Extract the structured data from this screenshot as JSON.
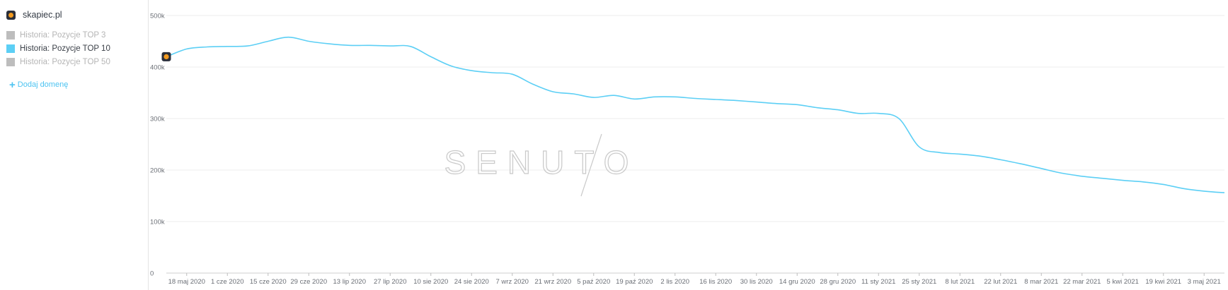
{
  "sidebar": {
    "domain": {
      "label": "skapiec.pl",
      "icon": "skapiec-logo-icon"
    },
    "legend": [
      {
        "label": "Historia: Pozycje TOP 3",
        "color": "#bdbdbd",
        "text_color": "#b5b5b5",
        "active": false
      },
      {
        "label": "Historia: Pozycje TOP 10",
        "color": "#5ccff5",
        "text_color": "#3a3f47",
        "active": true
      },
      {
        "label": "Historia: Pozycje TOP 50",
        "color": "#bdbdbd",
        "text_color": "#b5b5b5",
        "active": false
      }
    ],
    "add_domain": {
      "label": "Dodaj domenę",
      "icon": "plus-icon"
    }
  },
  "watermark": "SENUTO",
  "chart_data": {
    "type": "line",
    "title": "",
    "xlabel": "",
    "ylabel": "",
    "ylim": [
      0,
      500000
    ],
    "y_ticks": [
      {
        "label": "0",
        "value": 0
      },
      {
        "label": "100k",
        "value": 100000
      },
      {
        "label": "200k",
        "value": 200000
      },
      {
        "label": "300k",
        "value": 300000
      },
      {
        "label": "400k",
        "value": 400000
      },
      {
        "label": "500k",
        "value": 500000
      }
    ],
    "x_tick_labels": [
      "18 maj 2020",
      "1 cze 2020",
      "15 cze 2020",
      "29 cze 2020",
      "13 lip 2020",
      "27 lip 2020",
      "10 sie 2020",
      "24 sie 2020",
      "7 wrz 2020",
      "21 wrz 2020",
      "5 paź 2020",
      "19 paź 2020",
      "2 lis 2020",
      "16 lis 2020",
      "30 lis 2020",
      "14 gru 2020",
      "28 gru 2020",
      "11 sty 2021",
      "25 sty 2021",
      "8 lut 2021",
      "22 lut 2021",
      "8 mar 2021",
      "22 mar 2021",
      "5 kwi 2021",
      "19 kwi 2021",
      "3 maj 2021"
    ],
    "grid": true,
    "series": [
      {
        "name": "Historia: Pozycje TOP 10",
        "color": "#5ccff5",
        "x": [
          "2020-05-11",
          "2020-05-18",
          "2020-05-25",
          "2020-06-01",
          "2020-06-08",
          "2020-06-15",
          "2020-06-22",
          "2020-06-29",
          "2020-07-06",
          "2020-07-13",
          "2020-07-20",
          "2020-07-27",
          "2020-08-03",
          "2020-08-10",
          "2020-08-17",
          "2020-08-24",
          "2020-08-31",
          "2020-09-07",
          "2020-09-14",
          "2020-09-21",
          "2020-09-28",
          "2020-10-05",
          "2020-10-12",
          "2020-10-19",
          "2020-10-26",
          "2020-11-02",
          "2020-11-09",
          "2020-11-16",
          "2020-11-23",
          "2020-11-30",
          "2020-12-07",
          "2020-12-14",
          "2020-12-21",
          "2020-12-28",
          "2021-01-04",
          "2021-01-11",
          "2021-01-18",
          "2021-01-25",
          "2021-02-01",
          "2021-02-08",
          "2021-02-15",
          "2021-02-22",
          "2021-03-01",
          "2021-03-08",
          "2021-03-15",
          "2021-03-22",
          "2021-03-29",
          "2021-04-05",
          "2021-04-12",
          "2021-04-19",
          "2021-04-26",
          "2021-05-03",
          "2021-05-10"
        ],
        "values": [
          420000,
          435000,
          439000,
          440000,
          441000,
          450000,
          458000,
          450000,
          445000,
          442000,
          442000,
          441000,
          440000,
          420000,
          402000,
          393000,
          389000,
          386000,
          367000,
          352000,
          348000,
          341000,
          345000,
          338000,
          342000,
          342000,
          339000,
          337000,
          335000,
          332000,
          329000,
          327000,
          321000,
          317000,
          310000,
          310000,
          300000,
          245000,
          234000,
          231000,
          227000,
          220000,
          212000,
          203000,
          194000,
          188000,
          184000,
          180000,
          177000,
          172000,
          164000,
          159000,
          156000
        ]
      }
    ],
    "marker": {
      "series": 0,
      "index": 0,
      "icon": "skapiec-logo-icon"
    }
  }
}
